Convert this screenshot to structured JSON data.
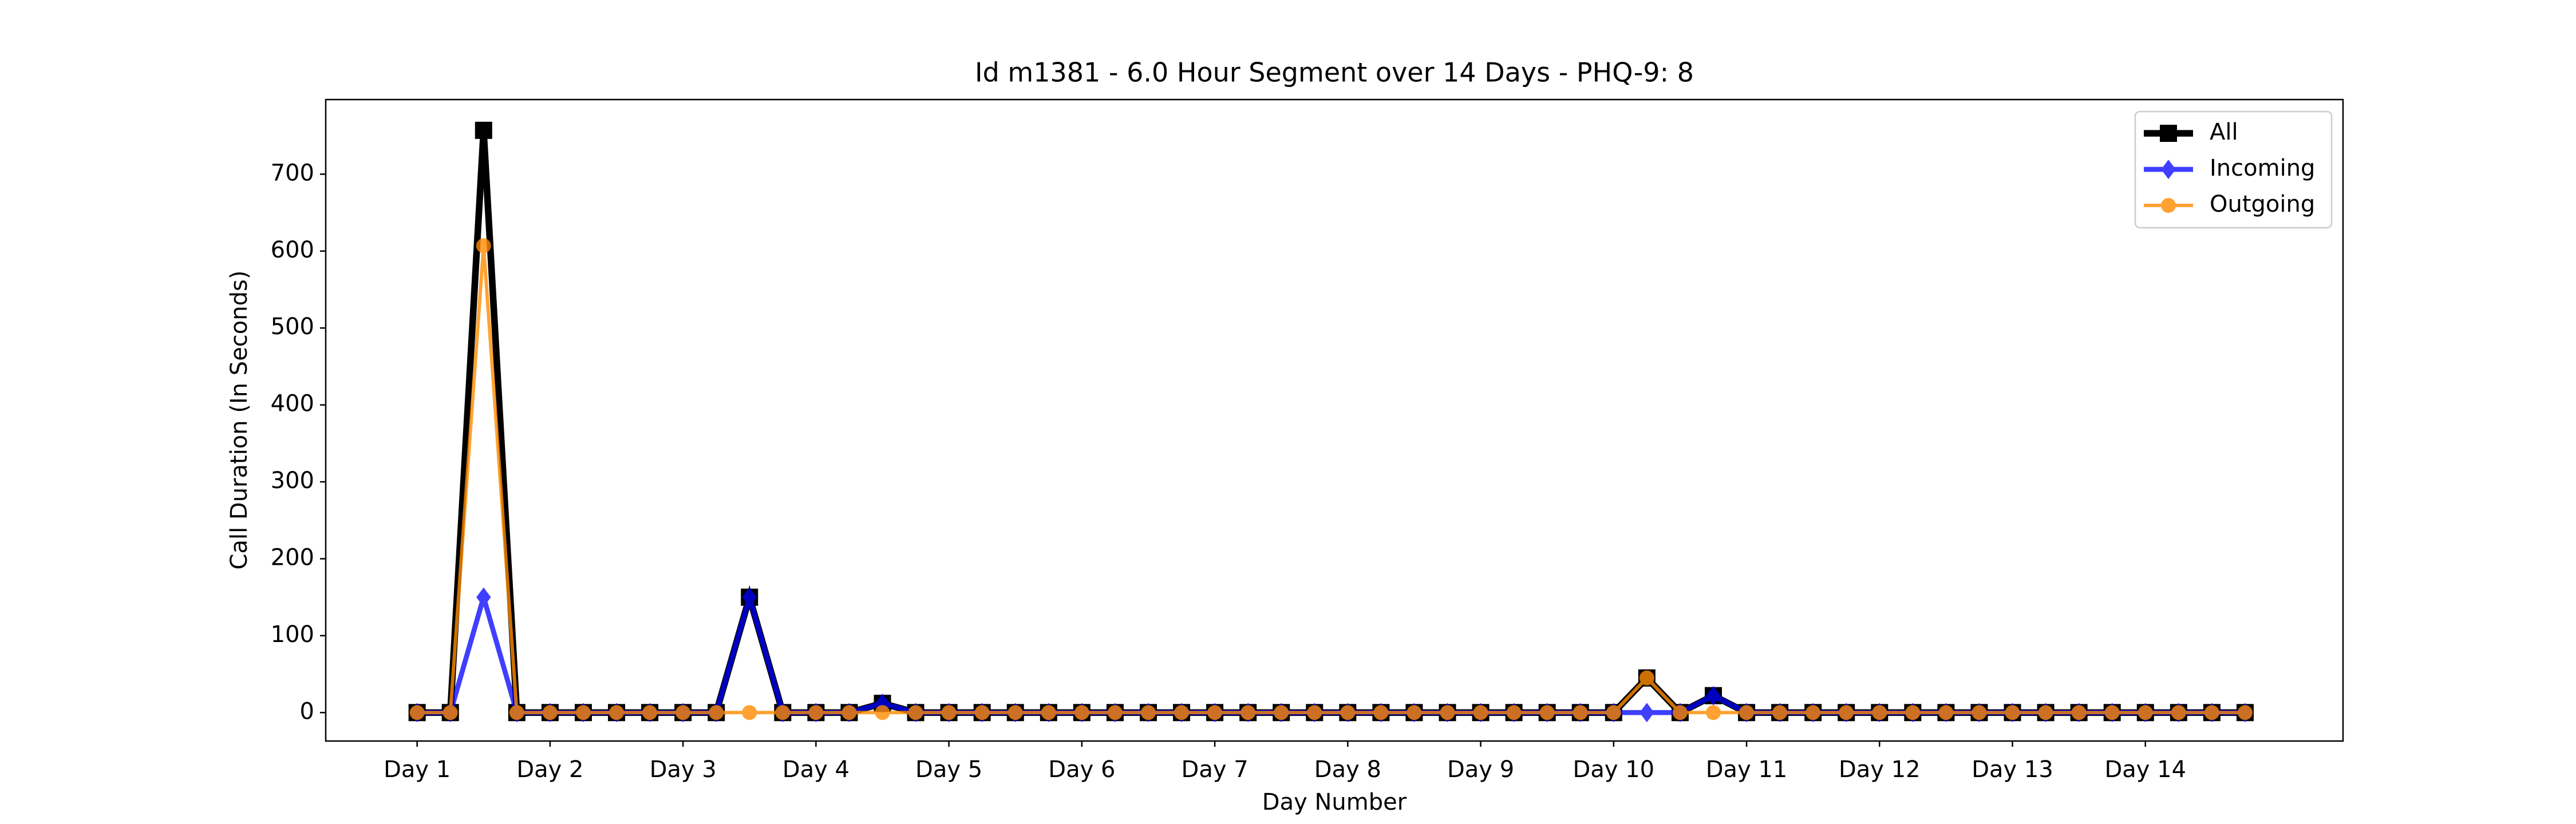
{
  "chart_data": {
    "type": "line",
    "title": "Id m1381 - 6.0 Hour Segment over 14 Days - PHQ-9: 8",
    "x_label": "Day Number",
    "y_label": "Call Duration (In Seconds)",
    "categories": [
      "Day 1",
      null,
      null,
      null,
      "Day 2",
      null,
      null,
      null,
      "Day 3",
      null,
      null,
      null,
      "Day 4",
      null,
      null,
      null,
      "Day 5",
      null,
      null,
      null,
      "Day 6",
      null,
      null,
      null,
      "Day 7",
      null,
      null,
      null,
      "Day 8",
      null,
      null,
      null,
      "Day 9",
      null,
      null,
      null,
      "Day 10",
      null,
      null,
      null,
      "Day 11",
      null,
      null,
      null,
      "Day 12",
      null,
      null,
      null,
      "Day 13",
      null,
      null,
      null,
      "Day 14",
      null,
      null,
      null
    ],
    "series": [
      {
        "name": "All",
        "color": "#000000",
        "marker": "square",
        "values": [
          0,
          0,
          757,
          0,
          0,
          0,
          0,
          0,
          0,
          0,
          150,
          0,
          0,
          0,
          12,
          0,
          0,
          0,
          0,
          0,
          0,
          0,
          0,
          0,
          0,
          0,
          0,
          0,
          0,
          0,
          0,
          0,
          0,
          0,
          0,
          0,
          0,
          45,
          0,
          22,
          0,
          0,
          0,
          0,
          0,
          0,
          0,
          0,
          0,
          0,
          0,
          0,
          0,
          0,
          0,
          0
        ]
      },
      {
        "name": "Incoming",
        "color": "#0000ff",
        "marker": "diamond",
        "values": [
          0,
          0,
          150,
          0,
          0,
          0,
          0,
          0,
          0,
          0,
          150,
          0,
          0,
          0,
          12,
          0,
          0,
          0,
          0,
          0,
          0,
          0,
          0,
          0,
          0,
          0,
          0,
          0,
          0,
          0,
          0,
          0,
          0,
          0,
          0,
          0,
          0,
          0,
          0,
          22,
          0,
          0,
          0,
          0,
          0,
          0,
          0,
          0,
          0,
          0,
          0,
          0,
          0,
          0,
          0,
          0
        ]
      },
      {
        "name": "Outgoing",
        "color": "#ff8c00",
        "marker": "circle",
        "values": [
          0,
          0,
          607,
          0,
          0,
          0,
          0,
          0,
          0,
          0,
          0,
          0,
          0,
          0,
          0,
          0,
          0,
          0,
          0,
          0,
          0,
          0,
          0,
          0,
          0,
          0,
          0,
          0,
          0,
          0,
          0,
          0,
          0,
          0,
          0,
          0,
          0,
          45,
          0,
          0,
          0,
          0,
          0,
          0,
          0,
          0,
          0,
          0,
          0,
          0,
          0,
          0,
          0,
          0,
          0,
          0
        ]
      }
    ],
    "ylim": [
      -37,
      797
    ],
    "yticks": [
      0,
      100,
      200,
      300,
      400,
      500,
      600,
      700
    ],
    "grid": false,
    "legend": "upper right"
  }
}
